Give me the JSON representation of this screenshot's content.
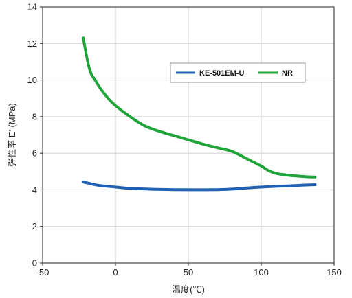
{
  "chart_data": {
    "type": "line",
    "xlabel": "温度(℃)",
    "ylabel": "弾性率 E’ (MPa)",
    "xlim": [
      -50,
      150
    ],
    "ylim": [
      0,
      14
    ],
    "xticks": [
      -50,
      0,
      50,
      100,
      150
    ],
    "yticks": [
      0,
      2,
      4,
      6,
      8,
      10,
      12,
      14
    ],
    "grid": true,
    "legend": "upper-right",
    "series": [
      {
        "name": "KE-501EM-U",
        "color": "#1f5fb4",
        "x": [
          -22,
          -18,
          -12,
          0,
          10,
          25,
          40,
          55,
          70,
          80,
          90,
          100,
          110,
          120,
          130,
          137
        ],
        "y": [
          4.42,
          4.35,
          4.25,
          4.15,
          4.08,
          4.03,
          4.01,
          4.0,
          4.01,
          4.04,
          4.1,
          4.15,
          4.19,
          4.22,
          4.26,
          4.28
        ]
      },
      {
        "name": "NR",
        "color": "#1fa43a",
        "x": [
          -22,
          -21,
          -19,
          -17,
          -14,
          -10,
          -5,
          0,
          10,
          20,
          30,
          45,
          60,
          70,
          80,
          90,
          100,
          105,
          110,
          118,
          125,
          130,
          137
        ],
        "y": [
          12.3,
          11.8,
          11.0,
          10.4,
          10.0,
          9.5,
          9.0,
          8.6,
          8.0,
          7.5,
          7.2,
          6.85,
          6.5,
          6.3,
          6.1,
          5.7,
          5.3,
          5.05,
          4.9,
          4.8,
          4.75,
          4.72,
          4.7
        ]
      }
    ]
  }
}
